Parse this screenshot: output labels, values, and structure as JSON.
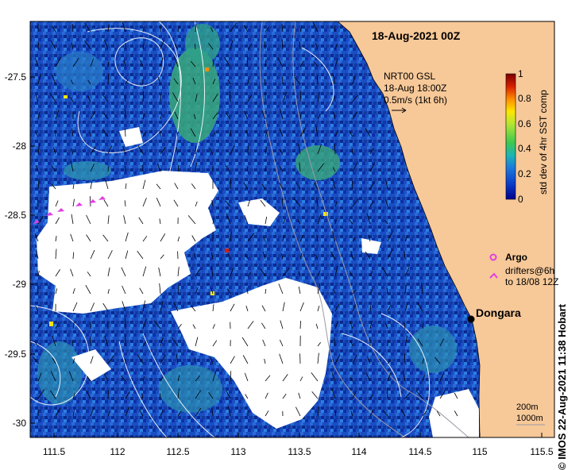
{
  "map": {
    "title": "18-Aug-2021 00Z",
    "currents": {
      "line1": "NRT00 GSL",
      "line2": "18-Aug 18:00Z",
      "line3": "0.5m/s (1kt 6h)"
    },
    "colorbar": {
      "label": "std dev of 4hr SST comp",
      "ticks": [
        "1",
        "0.8",
        "0.6",
        "0.4",
        "0.2",
        "0"
      ],
      "colors": [
        "#7a0000",
        "#d81e00",
        "#ff8c00",
        "#ffe600",
        "#b4e632",
        "#3cc850",
        "#1eb4b4",
        "#1e78dc",
        "#0a3cc8",
        "#00008c"
      ]
    },
    "legend": {
      "argo": "Argo",
      "drifters_1": "drifters@6h",
      "drifters_2": "to 18/08 12Z"
    },
    "place": "Dongara",
    "contours": {
      "label_1": "200m",
      "label_2": "1000m"
    },
    "x_ticks": [
      "111.5",
      "112",
      "112.5",
      "113",
      "113.5",
      "114",
      "114.5",
      "115",
      "115.5"
    ],
    "y_ticks": [
      "-27.5",
      "-28",
      "-28.5",
      "-29",
      "-29.5",
      "-30"
    ],
    "credit": "© IMOS 22-Aug-2021 11:38 Hobart",
    "colors": {
      "land": "#f7c898",
      "sea": "#1a4fc4",
      "cloud": "#ffffff"
    }
  }
}
